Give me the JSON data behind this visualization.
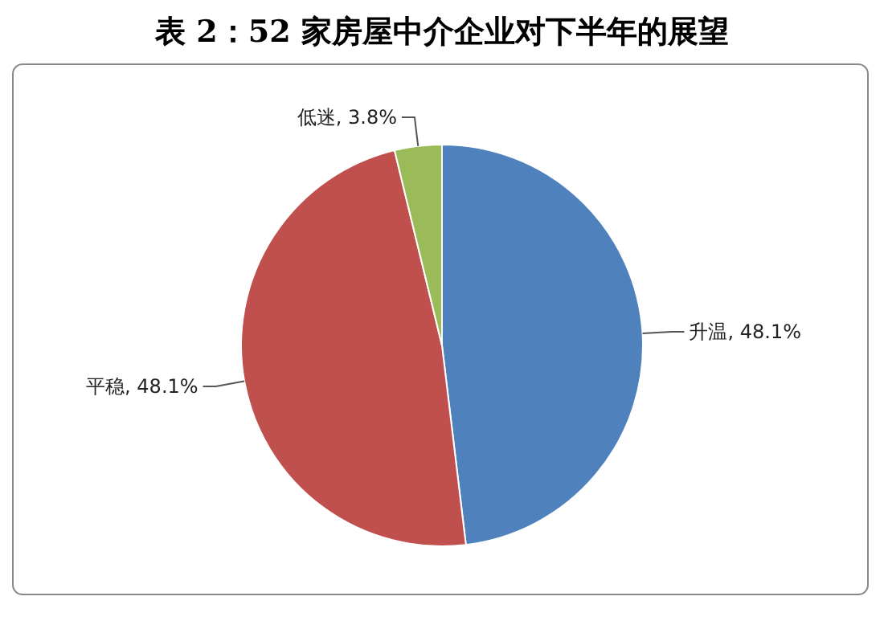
{
  "chart_data": {
    "type": "pie",
    "title": "表 2：52 家房屋中介企业对下半年的展望",
    "categories": [
      "升温",
      "平稳",
      "低迷"
    ],
    "values": [
      48.1,
      48.1,
      3.8
    ],
    "value_labels": [
      "48.1%",
      "48.1%",
      "3.8%"
    ],
    "colors": [
      "#4f81bd",
      "#c0504d",
      "#9bbb59"
    ],
    "legend": false
  }
}
